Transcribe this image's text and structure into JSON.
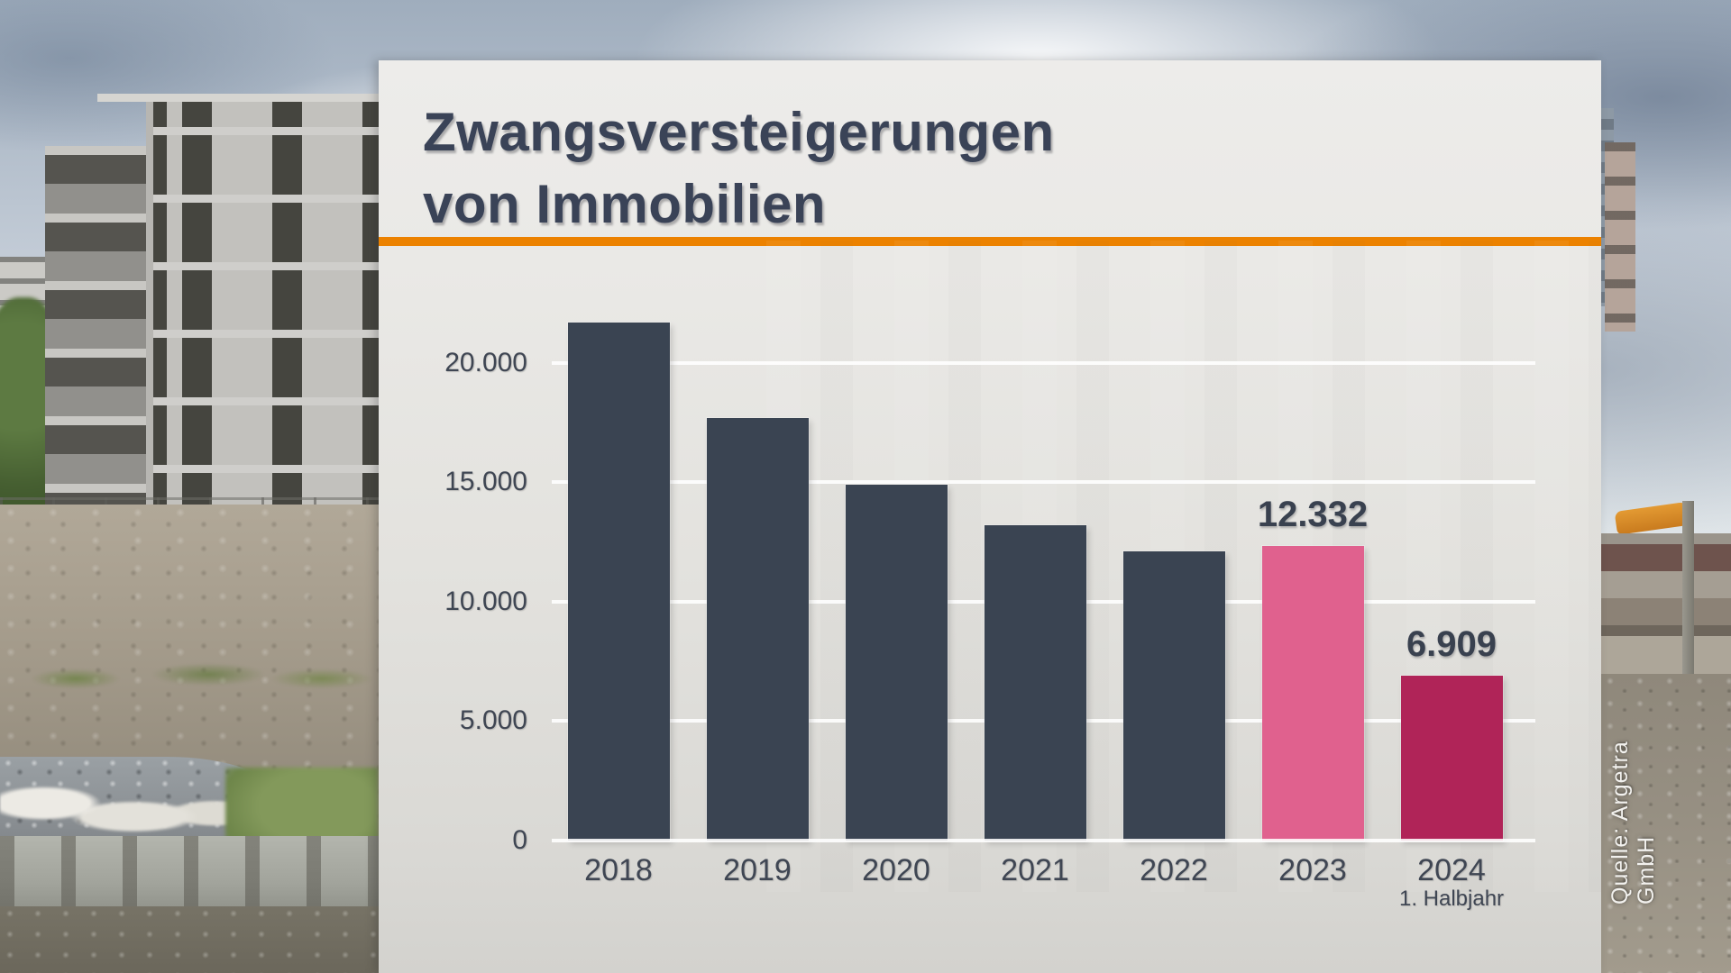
{
  "panel": {
    "title_line1": "Zwangsversteigerungen",
    "title_line2": "von Immobilien"
  },
  "source": {
    "label": "Quelle: Argetra GmbH"
  },
  "colors": {
    "accent_orange": "#ec8200",
    "bar_navy": "#3a4452",
    "bar_pink": "#e0618e",
    "bar_crimson": "#b02458",
    "panel_bg": "#eae9e6",
    "title_text": "#3a4357",
    "axis_text": "#3f4653",
    "grid_white": "#fdfdfc",
    "source_text": "#f2f1ee"
  },
  "chart_data": {
    "type": "bar",
    "title": "Zwangsversteigerungen von Immobilien",
    "categories": [
      "2018",
      "2019",
      "2020",
      "2021",
      "2022",
      "2023",
      "2024"
    ],
    "category_sublabels": {
      "2024": "1. Halbjahr"
    },
    "values": [
      21700,
      17700,
      14900,
      13200,
      12100,
      12332,
      6909
    ],
    "value_labels": [
      null,
      null,
      null,
      null,
      null,
      "12.332",
      "6.909"
    ],
    "bar_colors": [
      "#3a4452",
      "#3a4452",
      "#3a4452",
      "#3a4452",
      "#3a4452",
      "#e0618e",
      "#b02458"
    ],
    "ylim": [
      0,
      22500
    ],
    "yticks": [
      0,
      5000,
      10000,
      15000,
      20000
    ],
    "ytick_labels": [
      "0",
      "5.000",
      "10.000",
      "15.000",
      "20.000"
    ],
    "grid": true,
    "legend": false
  }
}
